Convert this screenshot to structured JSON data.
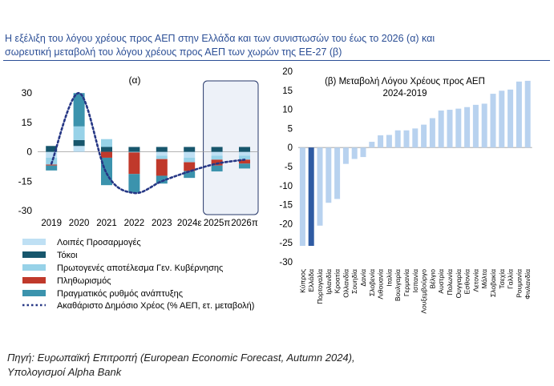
{
  "header": {
    "title_line1": "Η εξέλιξη του λόγου χρέους προς ΑΕΠ στην Ελλάδα και των συνιστωσών του έως το 2026 (α) και",
    "title_line2": "σωρευτική μεταβολή του λόγου χρέους προς ΑΕΠ των χωρών της ΕΕ-27 (β)"
  },
  "source": {
    "line1": "Πηγή: Ευρωπαϊκή Επιτροπή (European Economic Forecast, Autumn 2024),",
    "line2": "Υπολογισμοί Alpha Bank"
  },
  "colors": {
    "other": "#bfe0f4",
    "interest": "#17566c",
    "primary": "#97d2e8",
    "inflation": "#c0392b",
    "growth": "#3b93ad",
    "debt_line": "#263785",
    "bar_b": "#b8d2ef",
    "greece_bar": "#2f5ba3"
  },
  "chart_data": [
    {
      "type": "bar",
      "stacked": true,
      "panel_label": "(α)",
      "categories": [
        "2019",
        "2020",
        "2021",
        "2022",
        "2023",
        "2024ε",
        "2025π",
        "2026π"
      ],
      "ylim": [
        -30,
        35
      ],
      "yticks": [
        30,
        15,
        0,
        -15,
        -30
      ],
      "highlight": "2025π–2026π",
      "series": [
        {
          "name": "Λοιπές Προσαρμογές",
          "key": "other",
          "values": [
            -3,
            3,
            0,
            0,
            -2,
            -3,
            -2,
            -2
          ]
        },
        {
          "name": "Τόκοι",
          "key": "interest",
          "values": [
            3,
            3,
            2.5,
            2.5,
            2.5,
            2.5,
            2.5,
            2.5
          ]
        },
        {
          "name": "Πρωτογενές αποτέλεσμα Γεν. Κυβέρνησης",
          "key": "primary",
          "values": [
            -3.5,
            7,
            4,
            -0.3,
            -1.7,
            -2.3,
            -2,
            -2
          ]
        },
        {
          "name": "Πληθωρισμός",
          "key": "inflation",
          "values": [
            -0.5,
            0,
            -3,
            -11,
            -8.5,
            -4.5,
            -3,
            -2
          ]
        },
        {
          "name": "Πραγματικός ρυθμός ανάπτυξης",
          "key": "growth",
          "values": [
            -2.5,
            17,
            -14,
            -9.5,
            -4,
            -3.5,
            -3,
            -2.5
          ]
        }
      ],
      "line": {
        "name": "Ακαθάριστο Δημόσιο Χρέος (% ΑΕΠ, ετ. μεταβολή)",
        "key": "debt_line",
        "values": [
          -6,
          30,
          -11,
          -21,
          -15,
          -10,
          -6,
          -4
        ]
      }
    },
    {
      "type": "bar",
      "title_line1": "(β) Μεταβολή Λόγου Χρέους προς ΑΕΠ",
      "title_line2": "2024-2019",
      "ylim": [
        -30,
        20
      ],
      "yticks": [
        20,
        15,
        10,
        5,
        0,
        -5,
        -10,
        -15,
        -20,
        -25,
        -30
      ],
      "highlight": "Ελλάδα",
      "categories": [
        "Κύπρος",
        "Ελλάδα",
        "Πορτογαλία",
        "Ιρλανδία",
        "Κροατία",
        "Ολλανδία",
        "Σουηδία",
        "Δανία",
        "Σλοβενία",
        "Λιθουανία",
        "Ιταλία",
        "Βουλγαρία",
        "Γερμανία",
        "Ισπανία",
        "Λουξεμβούργο",
        "Βέλγιο",
        "Αυστρία",
        "Πολωνία",
        "Ουγγαρία",
        "Εσθονία",
        "Λετονία",
        "Μάλτα",
        "Σλοβακία",
        "Τσεχία",
        "Γαλλία",
        "Ρουμανία",
        "Φινλανδία"
      ],
      "values": [
        -25.8,
        -25.8,
        -20.5,
        -14.5,
        -13.5,
        -4.3,
        -3,
        -2.5,
        1.5,
        3.2,
        3.3,
        4.5,
        4.5,
        5,
        6,
        7.7,
        9.7,
        9.9,
        10.2,
        10.6,
        11.2,
        11.5,
        14.1,
        14.9,
        15.2,
        17.3,
        17.5
      ]
    }
  ]
}
